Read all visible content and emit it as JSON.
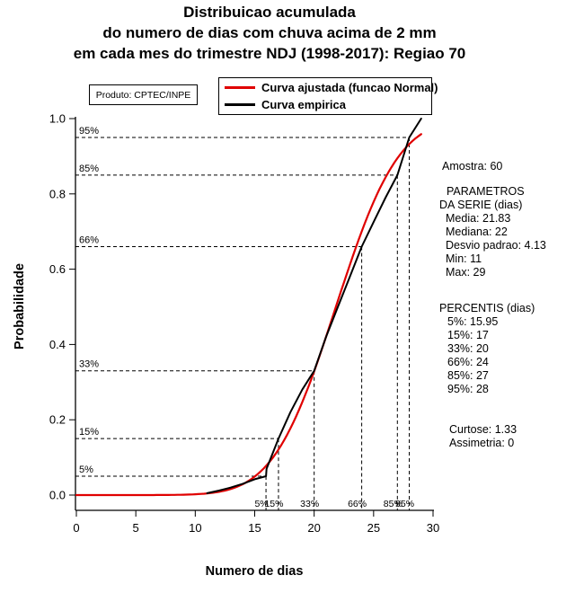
{
  "title": {
    "line1": "Distribuicao acumulada",
    "line2": "do numero de dias com chuva acima de 2 mm",
    "line3": "em cada mes do trimestre NDJ (1998-2017): Regiao 70"
  },
  "product_box": "Produto: CPTEC/INPE",
  "legend": [
    {
      "label": "Curva ajustada (funcao Normal)",
      "color": "#e00000"
    },
    {
      "label": "Curva empirica",
      "color": "#000000"
    }
  ],
  "axes": {
    "xlabel": "Numero de dias",
    "ylabel": "Probabilidade",
    "x_ticks": [
      0,
      5,
      10,
      15,
      20,
      25,
      30
    ],
    "y_ticks": [
      "0.0",
      "0.2",
      "0.4",
      "0.6",
      "0.8",
      "1.0"
    ],
    "xlim": [
      0,
      30
    ],
    "ylim": [
      0,
      1
    ]
  },
  "percentile_lines": [
    {
      "label": "5%",
      "prob": 0.05,
      "days": 15.95
    },
    {
      "label": "15%",
      "prob": 0.15,
      "days": 17
    },
    {
      "label": "33%",
      "prob": 0.33,
      "days": 20
    },
    {
      "label": "66%",
      "prob": 0.66,
      "days": 24
    },
    {
      "label": "85%",
      "prob": 0.85,
      "days": 27
    },
    {
      "label": "95%",
      "prob": 0.95,
      "days": 28
    }
  ],
  "stats": {
    "amostra": "Amostra: 60",
    "params_header1": "PARAMETROS",
    "params_header2": "DA SERIE (dias)",
    "params": [
      "Media: 21.83",
      "Mediana: 22",
      "Desvio padrao: 4.13",
      "Min: 11",
      "Max: 29"
    ],
    "percentis_header": "PERCENTIS (dias)",
    "percentis": [
      "5%: 15.95",
      "15%: 17",
      "33%: 20",
      "66%: 24",
      "85%: 27",
      "95%: 28"
    ],
    "curtose": "Curtose: 1.33",
    "assimetria": "Assimetria: 0"
  },
  "chart_data": {
    "type": "line",
    "title": "Distribuicao acumulada do numero de dias com chuva acima de 2 mm em cada mes do trimestre NDJ (1998-2017): Regiao 70",
    "xlabel": "Numero de dias",
    "ylabel": "Probabilidade",
    "xlim": [
      0,
      30
    ],
    "ylim": [
      0,
      1
    ],
    "grid": false,
    "legend_position": "top-right",
    "series": [
      {
        "name": "Curva ajustada (funcao Normal)",
        "color": "#e00000",
        "width": 2.2,
        "model": "normal_cdf",
        "mean": 21.83,
        "sd": 4.13,
        "x_range": [
          0,
          29
        ]
      },
      {
        "name": "Curva empirica",
        "color": "#000000",
        "width": 2,
        "points": [
          [
            11,
            0.005
          ],
          [
            12,
            0.012
          ],
          [
            13,
            0.02
          ],
          [
            14,
            0.03
          ],
          [
            15,
            0.042
          ],
          [
            15.95,
            0.05
          ],
          [
            16,
            0.07
          ],
          [
            17,
            0.15
          ],
          [
            18,
            0.22
          ],
          [
            19,
            0.28
          ],
          [
            20,
            0.33
          ],
          [
            21,
            0.42
          ],
          [
            22,
            0.5
          ],
          [
            23,
            0.58
          ],
          [
            24,
            0.66
          ],
          [
            25,
            0.725
          ],
          [
            26,
            0.79
          ],
          [
            27,
            0.85
          ],
          [
            28,
            0.95
          ],
          [
            29,
            1.0
          ]
        ]
      }
    ],
    "percentiles": {
      "probs": [
        0.05,
        0.15,
        0.33,
        0.66,
        0.85,
        0.95
      ],
      "days": [
        15.95,
        17,
        20,
        24,
        27,
        28
      ]
    },
    "sample_size": 60
  }
}
